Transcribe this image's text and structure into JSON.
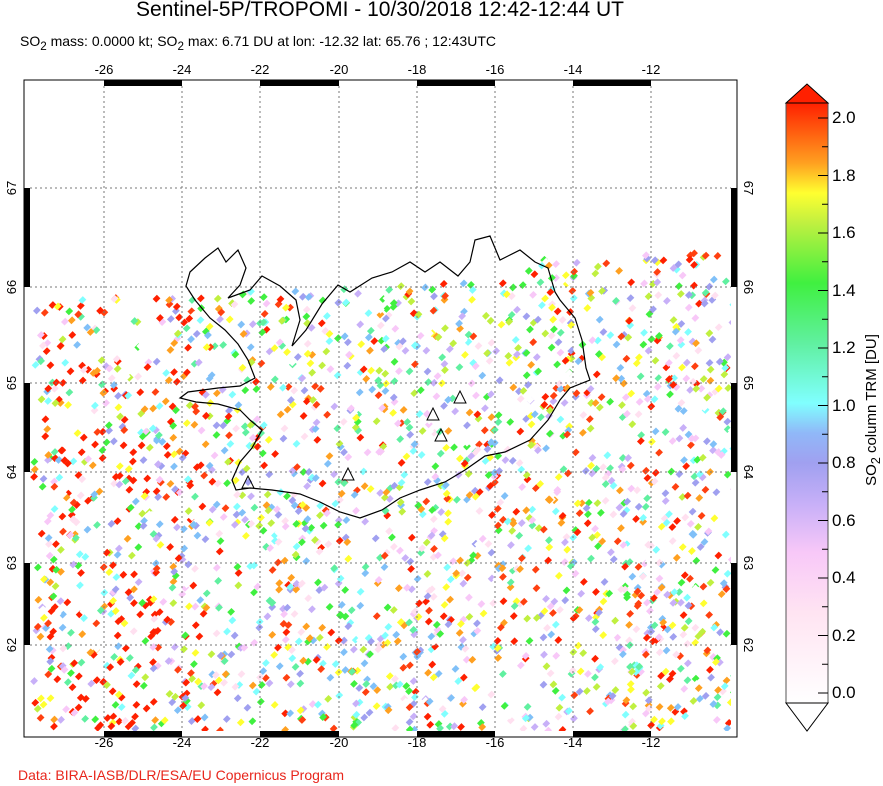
{
  "title": "Sentinel-5P/TROPOMI - 10/30/2018 12:42-12:44 UT",
  "subtitle": {
    "prefix": "SO",
    "sub": "2",
    "mass": " mass: 0.0000 kt; SO",
    "sub2": "2",
    "rest": " max: 6.71 DU at lon: -12.32 lat: 65.76 ; 12:43UTC"
  },
  "credit": "Data: BIRA-IASB/DLR/ESA/EU Copernicus Program",
  "map": {
    "lon_ticks": [
      "-26",
      "-24",
      "-22",
      "-20",
      "-18",
      "-16",
      "-14",
      "-12"
    ],
    "lat_ticks": [
      "67",
      "66",
      "65",
      "64",
      "63",
      "62"
    ],
    "volcano_marker": "triangle-icon"
  },
  "colorbar": {
    "label_prefix": "SO",
    "label_sub": "2",
    "label_rest": " column TRM [DU]",
    "ticks": [
      "2.0",
      "1.8",
      "1.6",
      "1.4",
      "1.2",
      "1.0",
      "0.8",
      "0.6",
      "0.4",
      "0.2",
      "0.0"
    ],
    "range": [
      0,
      2
    ],
    "colors": [
      "#ffffff",
      "#ffe0f0",
      "#f8c8f8",
      "#c8b0f8",
      "#a0a0f0",
      "#80c0f8",
      "#80ffff",
      "#60f0a0",
      "#40f040",
      "#c0f040",
      "#ffff30",
      "#ffa020",
      "#ff4010",
      "#ff2000"
    ]
  }
}
